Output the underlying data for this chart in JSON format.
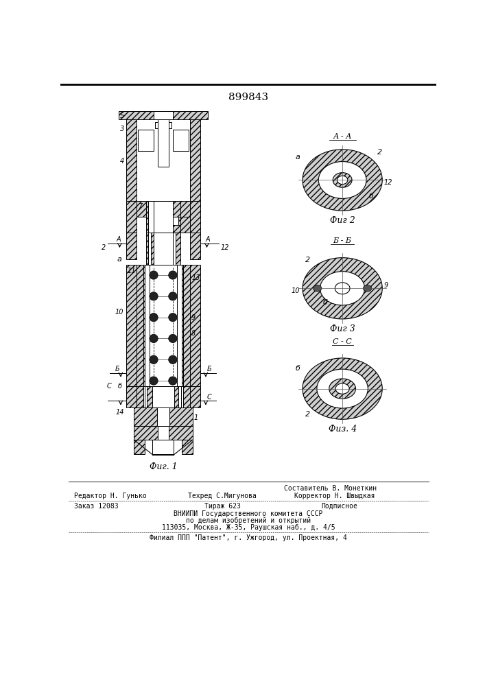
{
  "title": "899843",
  "title_fontsize": 11,
  "bg_color": "#ffffff",
  "line_color": "#000000",
  "fig1_label": "Фиг. 1",
  "fig2_label": "Фиг 2",
  "fig3_label": "Фиг 3",
  "fig4_label": "Физ. 4",
  "section_aa": "А - А",
  "section_bb": "Б - Б",
  "section_cc": "С - С",
  "footer_lines": [
    "Составитель В. Монеткин",
    "Редактор Н. Гунько",
    "Техред С.Мигунова",
    "Корректор Н. Швыдкая",
    "Заказ 12083",
    "Тираж 623",
    "Подписное",
    "ВНИИПИ Государственного комитета СССР",
    "по делам изобретений и открытий",
    "113035, Москва, Ж-35, Раушская наб., д. 4/5",
    "Филиал ППП \"Патент\", г. Ужгород, ул. Проектная, 4"
  ]
}
